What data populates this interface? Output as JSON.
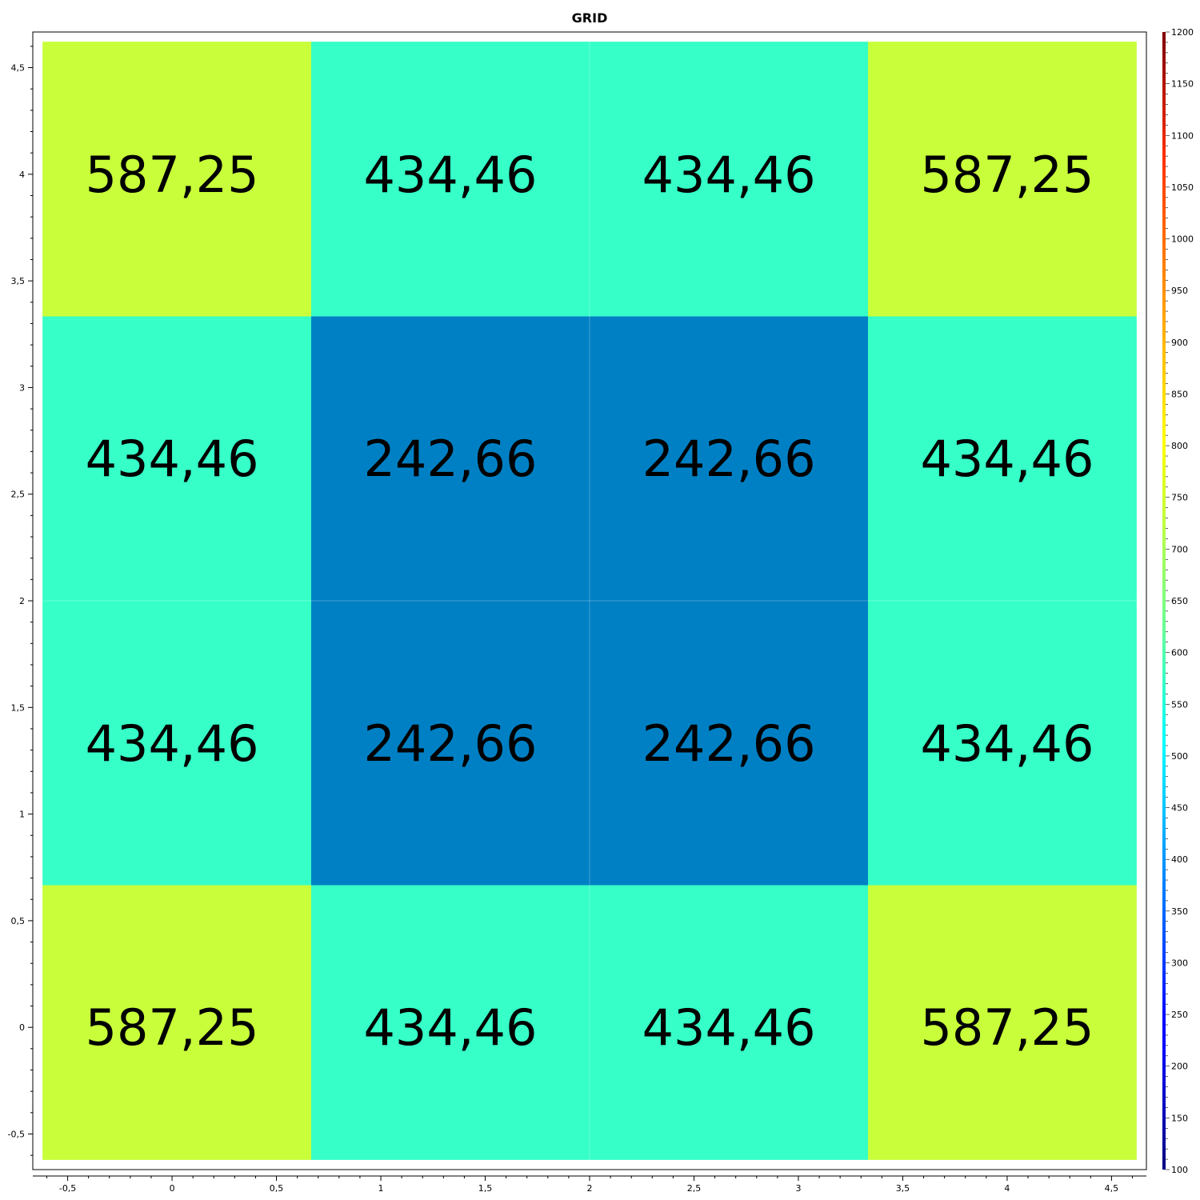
{
  "chart_data": {
    "type": "heatmap",
    "title": "GRID",
    "xlabel": "",
    "ylabel": "",
    "xlim": [
      -0.667,
      4.667
    ],
    "ylim": [
      -0.667,
      4.667
    ],
    "x_ticks": [
      -0.5,
      0,
      0.5,
      1,
      1.5,
      2,
      2.5,
      3,
      3.5,
      4,
      4.5
    ],
    "x_tick_labels": [
      "-0,5",
      "0",
      "0,5",
      "1",
      "1,5",
      "2",
      "2,5",
      "3",
      "3,5",
      "4",
      "4,5"
    ],
    "y_ticks": [
      -0.5,
      0,
      0.5,
      1,
      1.5,
      2,
      2.5,
      3,
      3.5,
      4,
      4.5
    ],
    "y_tick_labels": [
      "-0,5",
      "0",
      "0,5",
      "1",
      "1,5",
      "2",
      "2,5",
      "3",
      "3,5",
      "4",
      "4,5"
    ],
    "x_centers": [
      0,
      1.333,
      2.667,
      4
    ],
    "y_centers": [
      0,
      1.333,
      2.667,
      4
    ],
    "cell_size": 1.333,
    "values": [
      [
        587.25,
        434.46,
        434.46,
        587.25
      ],
      [
        434.46,
        242.66,
        242.66,
        434.46
      ],
      [
        434.46,
        242.66,
        242.66,
        434.46
      ],
      [
        587.25,
        434.46,
        434.46,
        587.25
      ]
    ],
    "value_labels": [
      [
        "587,25",
        "434,46",
        "434,46",
        "587,25"
      ],
      [
        "434,46",
        "242,66",
        "242,66",
        "434,46"
      ],
      [
        "434,46",
        "242,66",
        "242,66",
        "434,46"
      ],
      [
        "587,25",
        "434,46",
        "434,46",
        "587,25"
      ]
    ],
    "value_label_order": "rows top to bottom",
    "cell_colors": {
      "587.25": "#c8ff3a",
      "434.46": "#36ffc8",
      "242.66": "#0080c4"
    },
    "colorbar": {
      "min": 100,
      "max": 1200,
      "ticks": [
        100,
        150,
        200,
        250,
        300,
        350,
        400,
        450,
        500,
        550,
        600,
        650,
        700,
        750,
        800,
        850,
        900,
        950,
        1000,
        1050,
        1100,
        1150,
        1200
      ],
      "tick_labels": [
        "100",
        "150",
        "200",
        "250",
        "300",
        "350",
        "400",
        "450",
        "500",
        "550",
        "600",
        "650",
        "700",
        "750",
        "800",
        "850",
        "900",
        "950",
        "1000",
        "1050",
        "1100",
        "1150",
        "1200"
      ],
      "colormap": "jet",
      "placement": "right"
    },
    "grid": false
  }
}
